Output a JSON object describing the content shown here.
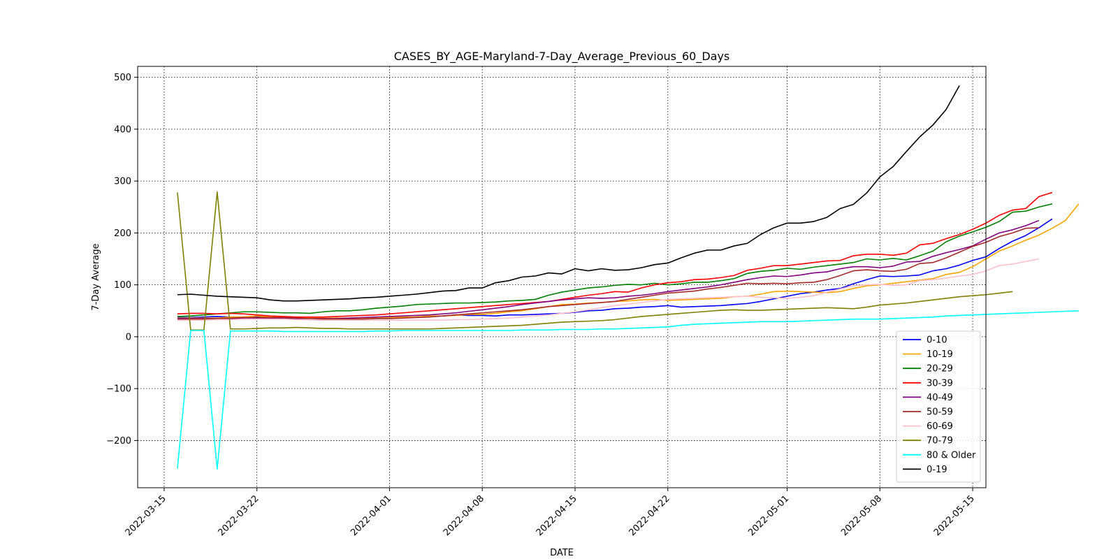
{
  "chart_data": {
    "type": "line",
    "title": "CASES_BY_AGE-Maryland-7-Day_Average_Previous_60_Days",
    "xlabel": "DATE",
    "ylabel": "7-Day Average",
    "x_start": "2022-03-16",
    "x_ticks": [
      "2022-03-15",
      "2022-03-22",
      "2022-04-01",
      "2022-04-08",
      "2022-04-15",
      "2022-04-22",
      "2022-05-01",
      "2022-05-08",
      "2022-05-15"
    ],
    "xlim": [
      "2022-03-13",
      "2022-05-16"
    ],
    "y_ticks": [
      -200,
      -100,
      0,
      100,
      200,
      300,
      400,
      500
    ],
    "ylim": [
      -291,
      521
    ],
    "grid": true,
    "grid_style": "dotted",
    "legend_position": "lower-right",
    "series": [
      {
        "name": "0-10",
        "color": "#0000ff",
        "values": [
          37,
          37,
          38,
          39,
          38,
          38,
          38,
          37,
          35,
          34,
          33,
          32,
          34,
          35,
          36,
          36,
          36,
          37,
          38,
          39,
          40,
          42,
          41,
          41,
          40,
          42,
          42,
          43,
          44,
          45,
          47,
          50,
          51,
          54,
          55,
          57,
          58,
          60,
          57,
          58,
          59,
          60,
          62,
          64,
          68,
          73,
          78,
          83,
          86,
          90,
          93,
          102,
          110,
          117,
          116,
          117,
          119,
          127,
          131,
          138,
          147,
          154,
          170,
          184,
          195,
          210,
          227
        ]
      },
      {
        "name": "10-19",
        "color": "#ffa500",
        "values": [
          36,
          36,
          36,
          36,
          38,
          38,
          40,
          38,
          38,
          36,
          36,
          36,
          36,
          36,
          36,
          37,
          37,
          38,
          38,
          40,
          40,
          41,
          43,
          43,
          45,
          48,
          50,
          54,
          58,
          62,
          63,
          65,
          66,
          68,
          69,
          71,
          72,
          70,
          71,
          72,
          73,
          74,
          77,
          78,
          82,
          87,
          88,
          87,
          86,
          85,
          87,
          93,
          98,
          100,
          103,
          106,
          109,
          112,
          120,
          124,
          135,
          150,
          165,
          175,
          186,
          196,
          209,
          224,
          256
        ]
      },
      {
        "name": "20-29",
        "color": "#008000",
        "values": [
          39,
          40,
          42,
          44,
          46,
          48,
          48,
          47,
          46,
          46,
          45,
          48,
          50,
          50,
          52,
          55,
          57,
          59,
          62,
          63,
          64,
          65,
          65,
          66,
          67,
          69,
          70,
          72,
          80,
          86,
          90,
          94,
          96,
          99,
          101,
          100,
          103,
          100,
          102,
          105,
          105,
          108,
          112,
          122,
          126,
          128,
          132,
          130,
          134,
          137,
          140,
          143,
          150,
          148,
          151,
          148,
          156,
          165,
          183,
          194,
          202,
          211,
          222,
          240,
          242,
          250,
          256
        ]
      },
      {
        "name": "30-39",
        "color": "#ff0000",
        "values": [
          44,
          45,
          45,
          44,
          45,
          44,
          42,
          40,
          39,
          38,
          38,
          38,
          39,
          40,
          41,
          42,
          44,
          46,
          48,
          50,
          52,
          54,
          56,
          58,
          60,
          62,
          64,
          66,
          68,
          72,
          76,
          80,
          83,
          87,
          86,
          94,
          100,
          104,
          106,
          110,
          111,
          114,
          118,
          128,
          132,
          137,
          137,
          140,
          143,
          146,
          147,
          156,
          159,
          159,
          157,
          161,
          177,
          180,
          189,
          197,
          207,
          219,
          234,
          244,
          247,
          270,
          278
        ]
      },
      {
        "name": "40-49",
        "color": "#800080",
        "values": [
          35,
          35,
          35,
          35,
          35,
          35,
          35,
          35,
          35,
          35,
          35,
          35,
          35,
          36,
          37,
          38,
          39,
          40,
          41,
          42,
          44,
          46,
          49,
          52,
          55,
          58,
          62,
          65,
          68,
          71,
          73,
          75,
          74,
          75,
          78,
          80,
          83,
          87,
          90,
          93,
          96,
          100,
          105,
          110,
          114,
          117,
          116,
          119,
          123,
          125,
          131,
          135,
          135,
          133,
          136,
          144,
          145,
          155,
          162,
          168,
          175,
          188,
          200,
          206,
          214,
          224
        ]
      },
      {
        "name": "50-59",
        "color": "#a52a2a",
        "values": [
          33,
          34,
          34,
          35,
          36,
          37,
          37,
          37,
          37,
          36,
          35,
          34,
          34,
          34,
          34,
          35,
          35,
          36,
          37,
          38,
          40,
          42,
          44,
          46,
          48,
          50,
          52,
          55,
          58,
          60,
          62,
          64,
          66,
          68,
          72,
          76,
          80,
          84,
          86,
          88,
          92,
          95,
          99,
          103,
          102,
          103,
          102,
          104,
          105,
          110,
          118,
          127,
          129,
          127,
          126,
          130,
          141,
          143,
          152,
          163,
          174,
          182,
          193,
          200,
          209,
          210
        ]
      },
      {
        "name": "60-69",
        "color": "#ffc0cb",
        "values": [
          32,
          32,
          32,
          33,
          33,
          34,
          34,
          34,
          34,
          33,
          33,
          32,
          32,
          32,
          32,
          32,
          32,
          32,
          32,
          32,
          32,
          33,
          33,
          34,
          35,
          36,
          38,
          40,
          42,
          45,
          48,
          52,
          56,
          60,
          63,
          66,
          69,
          72,
          73,
          74,
          75,
          76,
          77,
          78,
          76,
          75,
          74,
          76,
          79,
          86,
          92,
          98,
          100,
          101,
          99,
          100,
          108,
          110,
          113,
          117,
          120,
          127,
          137,
          140,
          145,
          150
        ]
      },
      {
        "name": "70-79",
        "color": "#808000",
        "values": [
          278,
          13,
          13,
          279,
          15,
          15,
          16,
          17,
          17,
          18,
          17,
          16,
          16,
          15,
          15,
          15,
          15,
          15,
          15,
          15,
          16,
          17,
          18,
          19,
          20,
          21,
          22,
          24,
          26,
          28,
          29,
          30,
          31,
          33,
          36,
          39,
          41,
          43,
          45,
          47,
          49,
          51,
          52,
          51,
          51,
          52,
          53,
          54,
          55,
          56,
          55,
          54,
          57,
          61,
          63,
          65,
          68,
          71,
          74,
          77,
          79,
          81,
          84,
          87
        ]
      },
      {
        "name": "80 & Older",
        "color": "#00ffff",
        "values": [
          -254,
          12,
          12,
          -255,
          11,
          11,
          11,
          11,
          10,
          10,
          10,
          10,
          10,
          10,
          10,
          11,
          11,
          12,
          12,
          12,
          12,
          12,
          12,
          12,
          12,
          12,
          13,
          13,
          13,
          14,
          14,
          14,
          15,
          15,
          16,
          17,
          18,
          19,
          22,
          24,
          25,
          26,
          27,
          28,
          29,
          29,
          29,
          30,
          31,
          32,
          33,
          34,
          34,
          34,
          35,
          36,
          37,
          38,
          40,
          41,
          42,
          43,
          44,
          45,
          46,
          47,
          48,
          49,
          50
        ]
      },
      {
        "name": "0-19",
        "color": "#000000",
        "values": [
          81,
          82,
          80,
          78,
          77,
          76,
          75,
          71,
          69,
          69,
          70,
          71,
          72,
          73,
          75,
          76,
          78,
          80,
          82,
          85,
          88,
          89,
          94,
          94,
          104,
          108,
          115,
          117,
          123,
          121,
          131,
          127,
          131,
          128,
          129,
          133,
          139,
          142,
          152,
          161,
          167,
          167,
          175,
          180,
          197,
          210,
          219,
          219,
          222,
          230,
          247,
          255,
          277,
          308,
          328,
          357,
          385,
          408,
          438,
          484
        ]
      }
    ]
  }
}
